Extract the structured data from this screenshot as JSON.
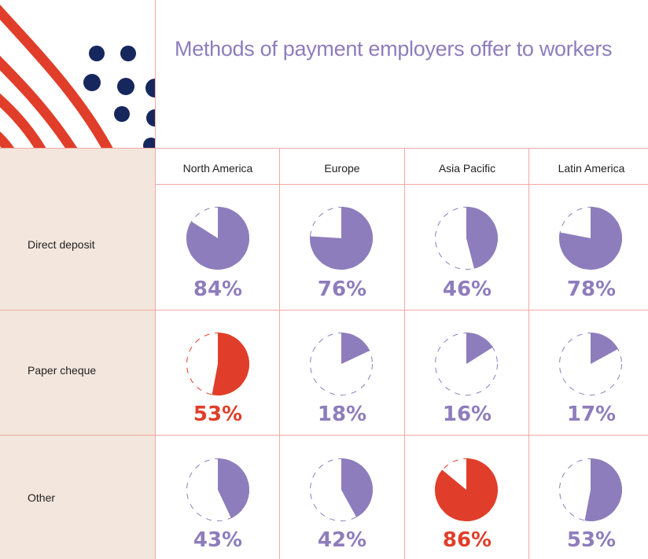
{
  "chart_data": {
    "type": "pie",
    "title": "Methods of payment employers offer to workers",
    "columns": [
      "North America",
      "Europe",
      "Asia Pacific",
      "Latin America"
    ],
    "rows": [
      {
        "label": "Direct deposit",
        "values": [
          84,
          76,
          46,
          78
        ]
      },
      {
        "label": "Paper cheque",
        "values": [
          53,
          18,
          16,
          17
        ]
      },
      {
        "label": "Other",
        "values": [
          43,
          42,
          86,
          53
        ]
      }
    ],
    "highlight": [
      [
        false,
        false,
        false,
        false
      ],
      [
        true,
        false,
        false,
        false
      ],
      [
        false,
        false,
        true,
        false
      ]
    ],
    "unit": "%"
  },
  "colors": {
    "primary": "#8e7dbc",
    "highlight": "#e03e2a",
    "dots": "#16275e",
    "grid": "#f2a8a2",
    "sidebar": "#f3e6dc"
  }
}
